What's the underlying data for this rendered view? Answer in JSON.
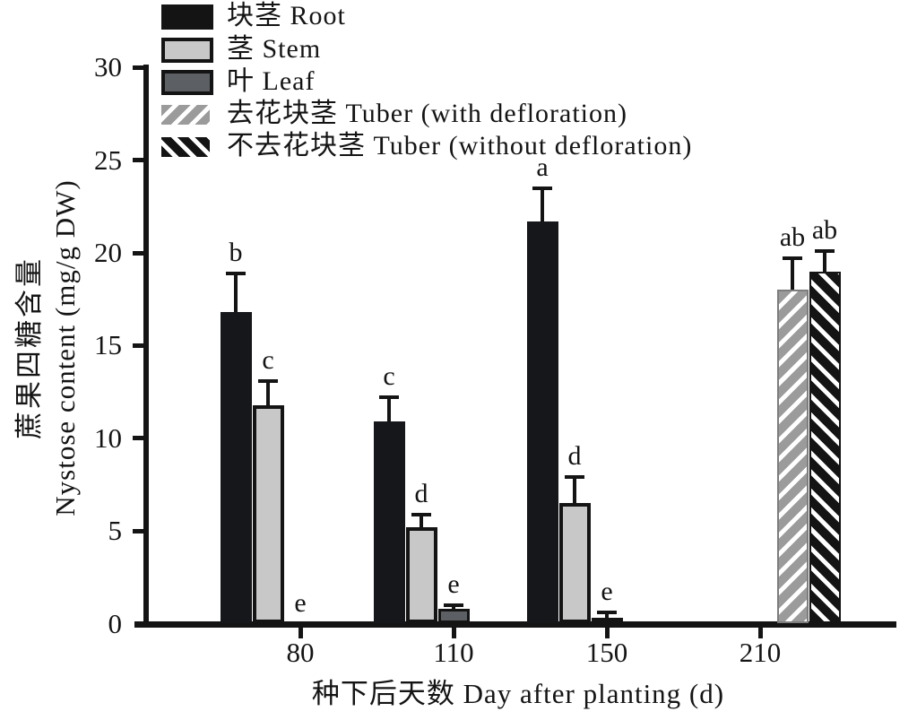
{
  "figure": {
    "background": "#ffffff",
    "axis_color": "#141414"
  },
  "chart_data": {
    "type": "bar",
    "title": "",
    "xlabel": "种下后天数 Day after planting (d)",
    "ylabel": "蔗果四糖含量 Nystose content (mg/g DW)",
    "ylabel_line1": "蔗果四糖含量",
    "ylabel_line2": "Nystose content (mg/g DW)",
    "ylim": [
      0,
      30
    ],
    "yticks": [
      0,
      5,
      10,
      15,
      20,
      25,
      30
    ],
    "grid": false,
    "legend_position": "top-left",
    "error_bars": "upper, with significance letters above caps",
    "categories": [
      "80",
      "110",
      "150",
      "210"
    ],
    "series": [
      {
        "name": "块茎 Root",
        "style": "root",
        "fill": "#15171a",
        "pattern": "solid",
        "values": [
          16.8,
          10.9,
          21.7,
          null
        ],
        "errors": [
          2.1,
          1.3,
          1.8,
          null
        ],
        "sig_letters": [
          "b",
          "c",
          "a",
          null
        ]
      },
      {
        "name": "茎 Stem",
        "style": "stem",
        "fill": "#c8c8c8",
        "pattern": "solid",
        "values": [
          11.8,
          5.2,
          6.5,
          null
        ],
        "errors": [
          1.3,
          0.7,
          1.4,
          null
        ],
        "sig_letters": [
          "c",
          "d",
          "d",
          null
        ]
      },
      {
        "name": "叶 Leaf",
        "style": "leaf",
        "fill": "#5c6064",
        "pattern": "solid",
        "values": [
          0,
          0.8,
          0.3,
          null
        ],
        "errors": [
          0,
          0.2,
          0.3,
          null
        ],
        "sig_letters": [
          "e",
          "e",
          "e",
          null
        ]
      },
      {
        "name": "去花块茎 Tuber (with defloration)",
        "style": "tuber-defl",
        "fill": "#9b9b9b",
        "pattern": "diagonal-hatch-forward",
        "values": [
          null,
          null,
          null,
          18.0
        ],
        "errors": [
          null,
          null,
          null,
          1.7
        ],
        "sig_letters": [
          null,
          null,
          null,
          "ab"
        ]
      },
      {
        "name": "不去花块茎 Tuber (without defloration)",
        "style": "tuber-nodefl",
        "fill": "#141414",
        "pattern": "diagonal-hatch-backward",
        "values": [
          null,
          null,
          null,
          19.0
        ],
        "errors": [
          null,
          null,
          null,
          1.1
        ],
        "sig_letters": [
          null,
          null,
          null,
          "ab"
        ]
      }
    ]
  }
}
